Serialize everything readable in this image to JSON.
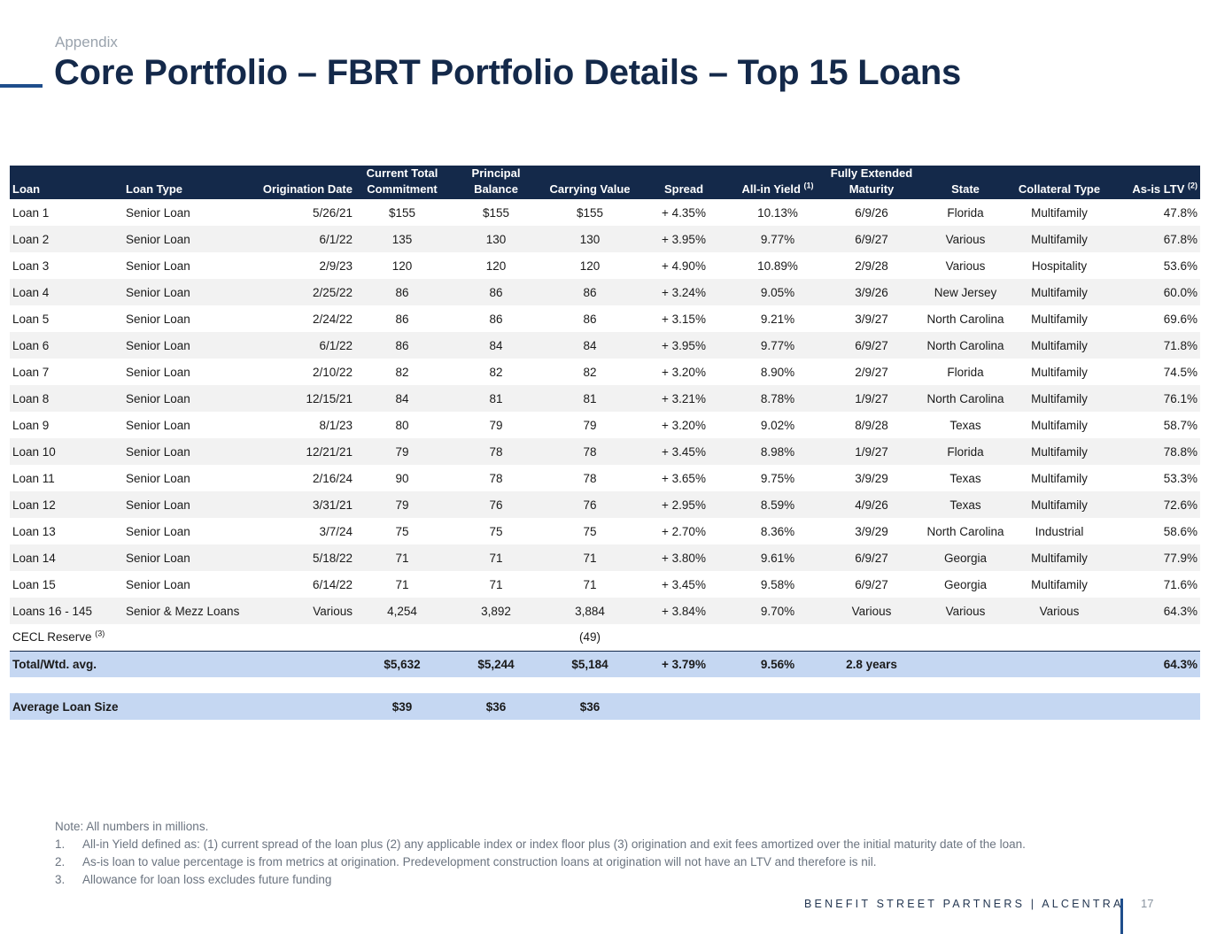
{
  "header": {
    "section": "Appendix",
    "title": "Core Portfolio – FBRT Portfolio Details – Top 15 Loans"
  },
  "table": {
    "columns": [
      {
        "line1": "",
        "line2": "Loan",
        "sup": ""
      },
      {
        "line1": "",
        "line2": "Loan Type",
        "sup": ""
      },
      {
        "line1": "",
        "line2": "Origination Date",
        "sup": ""
      },
      {
        "line1": "Current Total",
        "line2": "Commitment",
        "sup": ""
      },
      {
        "line1": "Principal",
        "line2": "Balance",
        "sup": ""
      },
      {
        "line1": "",
        "line2": "Carrying Value",
        "sup": ""
      },
      {
        "line1": "",
        "line2": "Spread",
        "sup": ""
      },
      {
        "line1": "",
        "line2": "All-in Yield",
        "sup": "(1)"
      },
      {
        "line1": "Fully Extended",
        "line2": "Maturity",
        "sup": ""
      },
      {
        "line1": "",
        "line2": "State",
        "sup": ""
      },
      {
        "line1": "",
        "line2": "Collateral Type",
        "sup": ""
      },
      {
        "line1": "",
        "line2": "As-is LTV",
        "sup": "(2)"
      }
    ],
    "rows": [
      {
        "loan": "Loan 1",
        "type": "Senior Loan",
        "orig": "5/26/21",
        "commit": "$155",
        "principal": "$155",
        "carrying": "$155",
        "spread": "+ 4.35%",
        "yield": "10.13%",
        "maturity": "6/9/26",
        "state": "Florida",
        "collateral": "Multifamily",
        "ltv": "47.8%"
      },
      {
        "loan": "Loan 2",
        "type": "Senior Loan",
        "orig": "6/1/22",
        "commit": "135",
        "principal": "130",
        "carrying": "130",
        "spread": "+ 3.95%",
        "yield": "9.77%",
        "maturity": "6/9/27",
        "state": "Various",
        "collateral": "Multifamily",
        "ltv": "67.8%"
      },
      {
        "loan": "Loan 3",
        "type": "Senior Loan",
        "orig": "2/9/23",
        "commit": "120",
        "principal": "120",
        "carrying": "120",
        "spread": "+ 4.90%",
        "yield": "10.89%",
        "maturity": "2/9/28",
        "state": "Various",
        "collateral": "Hospitality",
        "ltv": "53.6%"
      },
      {
        "loan": "Loan 4",
        "type": "Senior Loan",
        "orig": "2/25/22",
        "commit": "86",
        "principal": "86",
        "carrying": "86",
        "spread": "+ 3.24%",
        "yield": "9.05%",
        "maturity": "3/9/26",
        "state": "New Jersey",
        "collateral": "Multifamily",
        "ltv": "60.0%"
      },
      {
        "loan": "Loan 5",
        "type": "Senior Loan",
        "orig": "2/24/22",
        "commit": "86",
        "principal": "86",
        "carrying": "86",
        "spread": "+ 3.15%",
        "yield": "9.21%",
        "maturity": "3/9/27",
        "state": "North Carolina",
        "collateral": "Multifamily",
        "ltv": "69.6%"
      },
      {
        "loan": "Loan 6",
        "type": "Senior Loan",
        "orig": "6/1/22",
        "commit": "86",
        "principal": "84",
        "carrying": "84",
        "spread": "+ 3.95%",
        "yield": "9.77%",
        "maturity": "6/9/27",
        "state": "North Carolina",
        "collateral": "Multifamily",
        "ltv": "71.8%"
      },
      {
        "loan": "Loan 7",
        "type": "Senior Loan",
        "orig": "2/10/22",
        "commit": "82",
        "principal": "82",
        "carrying": "82",
        "spread": "+ 3.20%",
        "yield": "8.90%",
        "maturity": "2/9/27",
        "state": "Florida",
        "collateral": "Multifamily",
        "ltv": "74.5%"
      },
      {
        "loan": "Loan 8",
        "type": "Senior Loan",
        "orig": "12/15/21",
        "commit": "84",
        "principal": "81",
        "carrying": "81",
        "spread": "+ 3.21%",
        "yield": "8.78%",
        "maturity": "1/9/27",
        "state": "North Carolina",
        "collateral": "Multifamily",
        "ltv": "76.1%"
      },
      {
        "loan": "Loan 9",
        "type": "Senior Loan",
        "orig": "8/1/23",
        "commit": "80",
        "principal": "79",
        "carrying": "79",
        "spread": "+ 3.20%",
        "yield": "9.02%",
        "maturity": "8/9/28",
        "state": "Texas",
        "collateral": "Multifamily",
        "ltv": "58.7%"
      },
      {
        "loan": "Loan 10",
        "type": "Senior Loan",
        "orig": "12/21/21",
        "commit": "79",
        "principal": "78",
        "carrying": "78",
        "spread": "+ 3.45%",
        "yield": "8.98%",
        "maturity": "1/9/27",
        "state": "Florida",
        "collateral": "Multifamily",
        "ltv": "78.8%"
      },
      {
        "loan": "Loan 11",
        "type": "Senior Loan",
        "orig": "2/16/24",
        "commit": "90",
        "principal": "78",
        "carrying": "78",
        "spread": "+ 3.65%",
        "yield": "9.75%",
        "maturity": "3/9/29",
        "state": "Texas",
        "collateral": "Multifamily",
        "ltv": "53.3%"
      },
      {
        "loan": "Loan 12",
        "type": "Senior Loan",
        "orig": "3/31/21",
        "commit": "79",
        "principal": "76",
        "carrying": "76",
        "spread": "+ 2.95%",
        "yield": "8.59%",
        "maturity": "4/9/26",
        "state": "Texas",
        "collateral": "Multifamily",
        "ltv": "72.6%"
      },
      {
        "loan": "Loan 13",
        "type": "Senior Loan",
        "orig": "3/7/24",
        "commit": "75",
        "principal": "75",
        "carrying": "75",
        "spread": "+ 2.70%",
        "yield": "8.36%",
        "maturity": "3/9/29",
        "state": "North Carolina",
        "collateral": "Industrial",
        "ltv": "58.6%"
      },
      {
        "loan": "Loan 14",
        "type": "Senior Loan",
        "orig": "5/18/22",
        "commit": "71",
        "principal": "71",
        "carrying": "71",
        "spread": "+ 3.80%",
        "yield": "9.61%",
        "maturity": "6/9/27",
        "state": "Georgia",
        "collateral": "Multifamily",
        "ltv": "77.9%"
      },
      {
        "loan": "Loan 15",
        "type": "Senior Loan",
        "orig": "6/14/22",
        "commit": "71",
        "principal": "71",
        "carrying": "71",
        "spread": "+ 3.45%",
        "yield": "9.58%",
        "maturity": "6/9/27",
        "state": "Georgia",
        "collateral": "Multifamily",
        "ltv": "71.6%"
      },
      {
        "loan": "Loans 16 - 145",
        "type": "Senior & Mezz Loans",
        "orig": "Various",
        "commit": "4,254",
        "principal": "3,892",
        "carrying": "3,884",
        "spread": "+ 3.84%",
        "yield": "9.70%",
        "maturity": "Various",
        "state": "Various",
        "collateral": "Various",
        "ltv": "64.3%"
      }
    ],
    "cecl": {
      "label": "CECL Reserve",
      "sup": "(3)",
      "carrying": "(49)"
    },
    "total": {
      "label": "Total/Wtd. avg.",
      "commit": "$5,632",
      "principal": "$5,244",
      "carrying": "$5,184",
      "spread": "+ 3.79%",
      "yield": "9.56%",
      "maturity": "2.8 years",
      "ltv": "64.3%"
    },
    "average": {
      "label": "Average Loan Size",
      "commit": "$39",
      "principal": "$36",
      "carrying": "$36"
    }
  },
  "notes": {
    "intro": "Note: All numbers in millions.",
    "items": [
      {
        "num": "1.",
        "text": "All-in Yield defined as: (1) current spread of the loan plus (2) any applicable index or index floor plus (3) origination and exit fees amortized over the initial maturity date of the loan."
      },
      {
        "num": "2.",
        "text": "As-is loan to value percentage is from metrics at origination. Predevelopment construction loans at origination will not have an LTV and therefore is nil."
      },
      {
        "num": "3.",
        "text": "Allowance for loan loss excludes future funding"
      }
    ]
  },
  "footer": {
    "brand": "BENEFIT STREET PARTNERS | ALCENTRA",
    "page": "17"
  }
}
